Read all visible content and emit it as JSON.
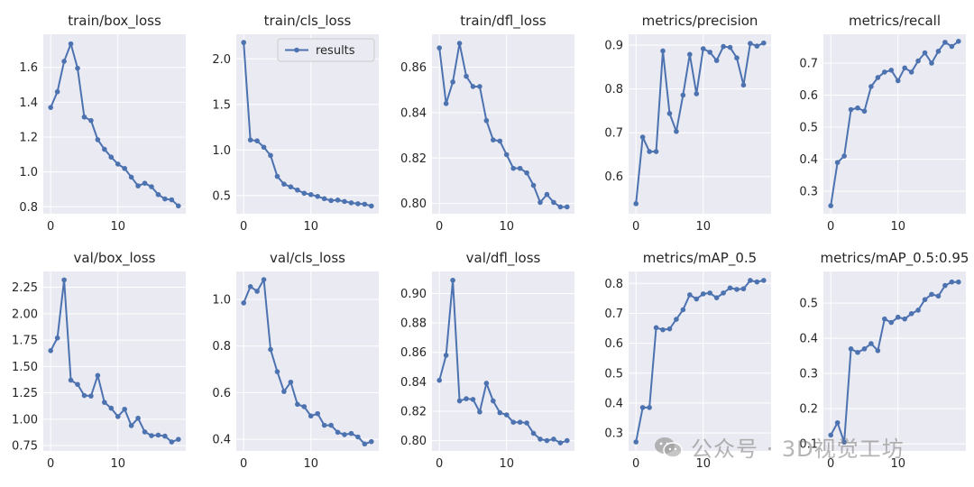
{
  "watermark": {
    "text": "公众号 · 3D视觉工坊",
    "icon": "wechat-icon"
  },
  "colors": {
    "line": "#4c72b0",
    "panel": "#eaeaf2",
    "grid": "#ffffff",
    "text": "#262626"
  },
  "chart_data": [
    {
      "type": "line",
      "title": "train/box_loss",
      "legend": null,
      "x": [
        0,
        1,
        2,
        3,
        4,
        5,
        6,
        7,
        8,
        9,
        10,
        11,
        12,
        13,
        14,
        15,
        16,
        17,
        18,
        19
      ],
      "values": [
        1.37,
        1.46,
        1.635,
        1.735,
        1.595,
        1.315,
        1.295,
        1.185,
        1.13,
        1.085,
        1.045,
        1.02,
        0.97,
        0.92,
        0.935,
        0.915,
        0.87,
        0.845,
        0.84,
        0.805
      ],
      "xlim": [
        -1.1,
        20.1
      ],
      "ylim": [
        0.76,
        1.79
      ],
      "xticks": [
        0,
        10
      ],
      "yticks": [
        0.8,
        1.0,
        1.2,
        1.4,
        1.6
      ],
      "ytick_labels": [
        "0.8",
        "1.0",
        "1.2",
        "1.4",
        "1.6"
      ]
    },
    {
      "type": "line",
      "title": "train/cls_loss",
      "legend": "results",
      "x": [
        0,
        1,
        2,
        3,
        4,
        5,
        6,
        7,
        8,
        9,
        10,
        11,
        12,
        13,
        14,
        15,
        16,
        17,
        18,
        19
      ],
      "values": [
        2.18,
        1.11,
        1.1,
        1.03,
        0.94,
        0.71,
        0.625,
        0.595,
        0.56,
        0.525,
        0.51,
        0.49,
        0.465,
        0.445,
        0.45,
        0.435,
        0.42,
        0.41,
        0.405,
        0.385
      ],
      "xlim": [
        -1.1,
        20.1
      ],
      "ylim": [
        0.3,
        2.27
      ],
      "xticks": [
        0,
        10
      ],
      "yticks": [
        0.5,
        1.0,
        1.5,
        2.0
      ],
      "ytick_labels": [
        "0.5",
        "1.0",
        "1.5",
        "2.0"
      ]
    },
    {
      "type": "line",
      "title": "train/dfl_loss",
      "legend": null,
      "x": [
        0,
        1,
        2,
        3,
        4,
        5,
        6,
        7,
        8,
        9,
        10,
        11,
        12,
        13,
        14,
        15,
        16,
        17,
        18,
        19
      ],
      "values": [
        0.8685,
        0.844,
        0.8535,
        0.8705,
        0.856,
        0.8515,
        0.8515,
        0.8365,
        0.828,
        0.8275,
        0.8215,
        0.8155,
        0.8155,
        0.8135,
        0.808,
        0.8005,
        0.804,
        0.8005,
        0.7985,
        0.7985
      ],
      "xlim": [
        -1.1,
        20.1
      ],
      "ylim": [
        0.7955,
        0.8745
      ],
      "xticks": [
        0,
        10
      ],
      "yticks": [
        0.8,
        0.82,
        0.84,
        0.86
      ],
      "ytick_labels": [
        "0.80",
        "0.82",
        "0.84",
        "0.86"
      ]
    },
    {
      "type": "line",
      "title": "metrics/precision",
      "legend": null,
      "x": [
        0,
        1,
        2,
        3,
        4,
        5,
        6,
        7,
        8,
        9,
        10,
        11,
        12,
        13,
        14,
        15,
        16,
        17,
        18,
        19
      ],
      "values": [
        0.538,
        0.69,
        0.657,
        0.657,
        0.887,
        0.744,
        0.703,
        0.786,
        0.879,
        0.789,
        0.892,
        0.884,
        0.865,
        0.897,
        0.895,
        0.871,
        0.809,
        0.904,
        0.898,
        0.905
      ],
      "xlim": [
        -1.1,
        20.1
      ],
      "ylim": [
        0.515,
        0.925
      ],
      "xticks": [
        0,
        10
      ],
      "yticks": [
        0.6,
        0.7,
        0.8,
        0.9
      ],
      "ytick_labels": [
        "0.6",
        "0.7",
        "0.8",
        "0.9"
      ]
    },
    {
      "type": "line",
      "title": "metrics/recall",
      "legend": null,
      "x": [
        0,
        1,
        2,
        3,
        4,
        5,
        6,
        7,
        8,
        9,
        10,
        11,
        12,
        13,
        14,
        15,
        16,
        17,
        18,
        19
      ],
      "values": [
        0.255,
        0.39,
        0.41,
        0.555,
        0.56,
        0.55,
        0.627,
        0.655,
        0.672,
        0.678,
        0.645,
        0.685,
        0.672,
        0.707,
        0.732,
        0.7,
        0.737,
        0.765,
        0.752,
        0.768
      ],
      "xlim": [
        -1.1,
        20.1
      ],
      "ylim": [
        0.23,
        0.79
      ],
      "xticks": [
        0,
        10
      ],
      "yticks": [
        0.3,
        0.4,
        0.5,
        0.6,
        0.7
      ],
      "ytick_labels": [
        "0.3",
        "0.4",
        "0.5",
        "0.6",
        "0.7"
      ]
    },
    {
      "type": "line",
      "title": "val/box_loss",
      "legend": null,
      "x": [
        0,
        1,
        2,
        3,
        4,
        5,
        6,
        7,
        8,
        9,
        10,
        11,
        12,
        13,
        14,
        15,
        16,
        17,
        18,
        19
      ],
      "values": [
        1.65,
        1.77,
        2.32,
        1.37,
        1.33,
        1.225,
        1.22,
        1.415,
        1.16,
        1.105,
        1.025,
        1.095,
        0.94,
        1.01,
        0.88,
        0.845,
        0.85,
        0.84,
        0.785,
        0.81
      ],
      "xlim": [
        -1.1,
        20.1
      ],
      "ylim": [
        0.7,
        2.4
      ],
      "xticks": [
        0,
        10
      ],
      "yticks": [
        0.75,
        1.0,
        1.25,
        1.5,
        1.75,
        2.0,
        2.25
      ],
      "ytick_labels": [
        "0.75",
        "1.00",
        "1.25",
        "1.50",
        "1.75",
        "2.00",
        "2.25"
      ]
    },
    {
      "type": "line",
      "title": "val/cls_loss",
      "legend": null,
      "x": [
        0,
        1,
        2,
        3,
        4,
        5,
        6,
        7,
        8,
        9,
        10,
        11,
        12,
        13,
        14,
        15,
        16,
        17,
        18,
        19
      ],
      "values": [
        0.985,
        1.055,
        1.035,
        1.085,
        0.785,
        0.69,
        0.605,
        0.645,
        0.55,
        0.54,
        0.5,
        0.51,
        0.46,
        0.46,
        0.43,
        0.42,
        0.425,
        0.41,
        0.38,
        0.39
      ],
      "xlim": [
        -1.1,
        20.1
      ],
      "ylim": [
        0.35,
        1.12
      ],
      "xticks": [
        0,
        10
      ],
      "yticks": [
        0.4,
        0.6,
        0.8,
        1.0
      ],
      "ytick_labels": [
        "0.4",
        "0.6",
        "0.8",
        "1.0"
      ]
    },
    {
      "type": "line",
      "title": "val/dfl_loss",
      "legend": null,
      "x": [
        0,
        1,
        2,
        3,
        4,
        5,
        6,
        7,
        8,
        9,
        10,
        11,
        12,
        13,
        14,
        15,
        16,
        17,
        18,
        19
      ],
      "values": [
        0.841,
        0.858,
        0.909,
        0.827,
        0.8285,
        0.828,
        0.8195,
        0.839,
        0.827,
        0.819,
        0.8175,
        0.8125,
        0.8125,
        0.812,
        0.805,
        0.801,
        0.8,
        0.801,
        0.7985,
        0.8
      ],
      "xlim": [
        -1.1,
        20.1
      ],
      "ylim": [
        0.793,
        0.915
      ],
      "xticks": [
        0,
        10
      ],
      "yticks": [
        0.8,
        0.82,
        0.84,
        0.86,
        0.88,
        0.9
      ],
      "ytick_labels": [
        "0.80",
        "0.82",
        "0.84",
        "0.86",
        "0.88",
        "0.90"
      ]
    },
    {
      "type": "line",
      "title": "metrics/mAP_0.5",
      "legend": null,
      "x": [
        0,
        1,
        2,
        3,
        4,
        5,
        6,
        7,
        8,
        9,
        10,
        11,
        12,
        13,
        14,
        15,
        16,
        17,
        18,
        19
      ],
      "values": [
        0.27,
        0.385,
        0.385,
        0.652,
        0.645,
        0.648,
        0.68,
        0.712,
        0.762,
        0.748,
        0.765,
        0.768,
        0.752,
        0.768,
        0.785,
        0.78,
        0.782,
        0.81,
        0.805,
        0.81
      ],
      "xlim": [
        -1.1,
        20.1
      ],
      "ylim": [
        0.24,
        0.84
      ],
      "xticks": [
        0,
        10
      ],
      "yticks": [
        0.3,
        0.4,
        0.5,
        0.6,
        0.7,
        0.8
      ],
      "ytick_labels": [
        "0.3",
        "0.4",
        "0.5",
        "0.6",
        "0.7",
        "0.8"
      ]
    },
    {
      "type": "line",
      "title": "metrics/mAP_0.5:0.95",
      "legend": null,
      "x": [
        0,
        1,
        2,
        3,
        4,
        5,
        6,
        7,
        8,
        9,
        10,
        11,
        12,
        13,
        14,
        15,
        16,
        17,
        18,
        19
      ],
      "values": [
        0.125,
        0.16,
        0.105,
        0.37,
        0.36,
        0.37,
        0.385,
        0.365,
        0.455,
        0.445,
        0.46,
        0.455,
        0.47,
        0.48,
        0.51,
        0.525,
        0.52,
        0.55,
        0.56,
        0.56
      ],
      "xlim": [
        -1.1,
        20.1
      ],
      "ylim": [
        0.08,
        0.59
      ],
      "xticks": [
        0,
        10
      ],
      "yticks": [
        0.1,
        0.2,
        0.3,
        0.4,
        0.5
      ],
      "ytick_labels": [
        "0.1",
        "0.2",
        "0.3",
        "0.4",
        "0.5"
      ]
    }
  ]
}
